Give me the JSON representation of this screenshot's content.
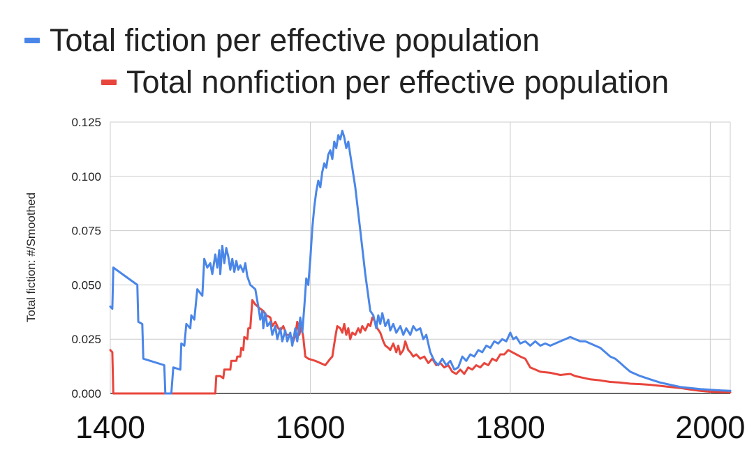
{
  "chart_data": {
    "type": "line",
    "title": "",
    "xlabel": "",
    "ylabel": "Total fiction: #/Smoothed",
    "xlim": [
      1400,
      2020
    ],
    "ylim": [
      0,
      0.125
    ],
    "x_ticks": [
      1400,
      1600,
      1800,
      2000
    ],
    "x_tick_labels": [
      "1400",
      "1600",
      "1800",
      "2000"
    ],
    "y_ticks": [
      0,
      0.025,
      0.05,
      0.075,
      0.1,
      0.125
    ],
    "y_tick_labels": [
      "0.000",
      "0.025",
      "0.050",
      "0.075",
      "0.100",
      "0.125"
    ],
    "grid": true,
    "legend_position": "top",
    "series": [
      {
        "name": "Total fiction per effective population",
        "color": "#4a86e8",
        "points": [
          [
            1400,
            0.04
          ],
          [
            1402,
            0.039
          ],
          [
            1403,
            0.058
          ],
          [
            1415,
            0.054
          ],
          [
            1427,
            0.05
          ],
          [
            1428,
            0.033
          ],
          [
            1432,
            0.032
          ],
          [
            1433,
            0.016
          ],
          [
            1454,
            0.013
          ],
          [
            1455,
            0.0
          ],
          [
            1461,
            0.0
          ],
          [
            1463,
            0.012
          ],
          [
            1470,
            0.011
          ],
          [
            1471,
            0.023
          ],
          [
            1474,
            0.022
          ],
          [
            1476,
            0.032
          ],
          [
            1480,
            0.03
          ],
          [
            1481,
            0.036
          ],
          [
            1484,
            0.034
          ],
          [
            1487,
            0.048
          ],
          [
            1492,
            0.045
          ],
          [
            1494,
            0.062
          ],
          [
            1497,
            0.058
          ],
          [
            1500,
            0.06
          ],
          [
            1502,
            0.055
          ],
          [
            1505,
            0.064
          ],
          [
            1507,
            0.058
          ],
          [
            1509,
            0.066
          ],
          [
            1510,
            0.055
          ],
          [
            1512,
            0.068
          ],
          [
            1514,
            0.06
          ],
          [
            1516,
            0.067
          ],
          [
            1518,
            0.063
          ],
          [
            1520,
            0.057
          ],
          [
            1522,
            0.062
          ],
          [
            1524,
            0.056
          ],
          [
            1526,
            0.061
          ],
          [
            1528,
            0.057
          ],
          [
            1530,
            0.059
          ],
          [
            1533,
            0.056
          ],
          [
            1535,
            0.06
          ],
          [
            1537,
            0.054
          ],
          [
            1540,
            0.05
          ],
          [
            1545,
            0.048
          ],
          [
            1548,
            0.04
          ],
          [
            1550,
            0.034
          ],
          [
            1552,
            0.038
          ],
          [
            1553,
            0.03
          ],
          [
            1555,
            0.037
          ],
          [
            1557,
            0.031
          ],
          [
            1560,
            0.033
          ],
          [
            1562,
            0.027
          ],
          [
            1565,
            0.031
          ],
          [
            1567,
            0.025
          ],
          [
            1570,
            0.03
          ],
          [
            1572,
            0.024
          ],
          [
            1575,
            0.029
          ],
          [
            1577,
            0.024
          ],
          [
            1580,
            0.028
          ],
          [
            1582,
            0.022
          ],
          [
            1585,
            0.03
          ],
          [
            1587,
            0.024
          ],
          [
            1590,
            0.035
          ],
          [
            1592,
            0.028
          ],
          [
            1594,
            0.04
          ],
          [
            1596,
            0.053
          ],
          [
            1598,
            0.05
          ],
          [
            1600,
            0.062
          ],
          [
            1602,
            0.076
          ],
          [
            1604,
            0.086
          ],
          [
            1606,
            0.093
          ],
          [
            1608,
            0.098
          ],
          [
            1610,
            0.095
          ],
          [
            1612,
            0.102
          ],
          [
            1614,
            0.106
          ],
          [
            1616,
            0.104
          ],
          [
            1618,
            0.11
          ],
          [
            1620,
            0.112
          ],
          [
            1622,
            0.108
          ],
          [
            1624,
            0.116
          ],
          [
            1626,
            0.113
          ],
          [
            1628,
            0.119
          ],
          [
            1630,
            0.117
          ],
          [
            1632,
            0.121
          ],
          [
            1634,
            0.118
          ],
          [
            1636,
            0.113
          ],
          [
            1638,
            0.116
          ],
          [
            1640,
            0.11
          ],
          [
            1645,
            0.095
          ],
          [
            1650,
            0.075
          ],
          [
            1655,
            0.055
          ],
          [
            1660,
            0.038
          ],
          [
            1663,
            0.036
          ],
          [
            1666,
            0.03
          ],
          [
            1668,
            0.036
          ],
          [
            1670,
            0.032
          ],
          [
            1672,
            0.037
          ],
          [
            1675,
            0.031
          ],
          [
            1678,
            0.034
          ],
          [
            1680,
            0.029
          ],
          [
            1683,
            0.032
          ],
          [
            1686,
            0.028
          ],
          [
            1690,
            0.031
          ],
          [
            1693,
            0.027
          ],
          [
            1696,
            0.03
          ],
          [
            1700,
            0.027
          ],
          [
            1703,
            0.031
          ],
          [
            1706,
            0.029
          ],
          [
            1710,
            0.03
          ],
          [
            1713,
            0.025
          ],
          [
            1716,
            0.027
          ],
          [
            1720,
            0.019
          ],
          [
            1724,
            0.015
          ],
          [
            1728,
            0.013
          ],
          [
            1732,
            0.016
          ],
          [
            1736,
            0.013
          ],
          [
            1740,
            0.015
          ],
          [
            1744,
            0.011
          ],
          [
            1748,
            0.012
          ],
          [
            1752,
            0.017
          ],
          [
            1756,
            0.015
          ],
          [
            1760,
            0.018
          ],
          [
            1764,
            0.017
          ],
          [
            1768,
            0.02
          ],
          [
            1772,
            0.019
          ],
          [
            1776,
            0.022
          ],
          [
            1780,
            0.021
          ],
          [
            1784,
            0.024
          ],
          [
            1788,
            0.023
          ],
          [
            1792,
            0.025
          ],
          [
            1796,
            0.024
          ],
          [
            1800,
            0.028
          ],
          [
            1803,
            0.025
          ],
          [
            1806,
            0.026
          ],
          [
            1810,
            0.023
          ],
          [
            1815,
            0.024
          ],
          [
            1820,
            0.022
          ],
          [
            1825,
            0.024
          ],
          [
            1830,
            0.022
          ],
          [
            1835,
            0.023
          ],
          [
            1840,
            0.022
          ],
          [
            1845,
            0.023
          ],
          [
            1850,
            0.024
          ],
          [
            1855,
            0.025
          ],
          [
            1860,
            0.026
          ],
          [
            1865,
            0.025
          ],
          [
            1870,
            0.024
          ],
          [
            1875,
            0.024
          ],
          [
            1880,
            0.023
          ],
          [
            1885,
            0.022
          ],
          [
            1890,
            0.021
          ],
          [
            1895,
            0.019
          ],
          [
            1900,
            0.017
          ],
          [
            1905,
            0.016
          ],
          [
            1910,
            0.014
          ],
          [
            1915,
            0.012
          ],
          [
            1920,
            0.01
          ],
          [
            1925,
            0.009
          ],
          [
            1930,
            0.008
          ],
          [
            1940,
            0.0065
          ],
          [
            1950,
            0.005
          ],
          [
            1960,
            0.004
          ],
          [
            1970,
            0.003
          ],
          [
            1980,
            0.0025
          ],
          [
            1990,
            0.002
          ],
          [
            2000,
            0.0017
          ],
          [
            2010,
            0.0014
          ],
          [
            2020,
            0.0012
          ]
        ]
      },
      {
        "name": "Total nonfiction per effective population",
        "color": "#e8453c",
        "points": [
          [
            1400,
            0.02
          ],
          [
            1402,
            0.019
          ],
          [
            1403,
            0.0
          ],
          [
            1505,
            0.0
          ],
          [
            1506,
            0.008
          ],
          [
            1510,
            0.008
          ],
          [
            1513,
            0.007
          ],
          [
            1514,
            0.011
          ],
          [
            1520,
            0.011
          ],
          [
            1521,
            0.015
          ],
          [
            1526,
            0.015
          ],
          [
            1527,
            0.017
          ],
          [
            1530,
            0.017
          ],
          [
            1531,
            0.021
          ],
          [
            1533,
            0.02
          ],
          [
            1534,
            0.026
          ],
          [
            1537,
            0.025
          ],
          [
            1538,
            0.03
          ],
          [
            1540,
            0.03
          ],
          [
            1542,
            0.043
          ],
          [
            1545,
            0.041
          ],
          [
            1550,
            0.039
          ],
          [
            1553,
            0.038
          ],
          [
            1556,
            0.036
          ],
          [
            1560,
            0.035
          ],
          [
            1562,
            0.031
          ],
          [
            1565,
            0.033
          ],
          [
            1568,
            0.03
          ],
          [
            1570,
            0.029
          ],
          [
            1573,
            0.031
          ],
          [
            1576,
            0.027
          ],
          [
            1580,
            0.027
          ],
          [
            1583,
            0.024
          ],
          [
            1585,
            0.027
          ],
          [
            1587,
            0.033
          ],
          [
            1589,
            0.027
          ],
          [
            1591,
            0.031
          ],
          [
            1593,
            0.026
          ],
          [
            1595,
            0.017
          ],
          [
            1598,
            0.016
          ],
          [
            1605,
            0.015
          ],
          [
            1615,
            0.013
          ],
          [
            1620,
            0.016
          ],
          [
            1622,
            0.017
          ],
          [
            1625,
            0.026
          ],
          [
            1627,
            0.031
          ],
          [
            1630,
            0.03
          ],
          [
            1632,
            0.028
          ],
          [
            1634,
            0.032
          ],
          [
            1636,
            0.027
          ],
          [
            1638,
            0.03
          ],
          [
            1640,
            0.025
          ],
          [
            1642,
            0.028
          ],
          [
            1645,
            0.027
          ],
          [
            1648,
            0.03
          ],
          [
            1650,
            0.028
          ],
          [
            1652,
            0.031
          ],
          [
            1655,
            0.029
          ],
          [
            1658,
            0.032
          ],
          [
            1660,
            0.031
          ],
          [
            1662,
            0.035
          ],
          [
            1665,
            0.033
          ],
          [
            1667,
            0.03
          ],
          [
            1670,
            0.028
          ],
          [
            1673,
            0.024
          ],
          [
            1675,
            0.022
          ],
          [
            1678,
            0.021
          ],
          [
            1680,
            0.02
          ],
          [
            1683,
            0.023
          ],
          [
            1686,
            0.019
          ],
          [
            1688,
            0.022
          ],
          [
            1690,
            0.018
          ],
          [
            1693,
            0.02
          ],
          [
            1695,
            0.024
          ],
          [
            1698,
            0.02
          ],
          [
            1700,
            0.019
          ],
          [
            1703,
            0.017
          ],
          [
            1706,
            0.018
          ],
          [
            1710,
            0.016
          ],
          [
            1714,
            0.017
          ],
          [
            1718,
            0.014
          ],
          [
            1722,
            0.016
          ],
          [
            1726,
            0.013
          ],
          [
            1730,
            0.014
          ],
          [
            1734,
            0.012
          ],
          [
            1738,
            0.013
          ],
          [
            1742,
            0.01
          ],
          [
            1746,
            0.009
          ],
          [
            1750,
            0.011
          ],
          [
            1754,
            0.009
          ],
          [
            1758,
            0.012
          ],
          [
            1762,
            0.011
          ],
          [
            1766,
            0.013
          ],
          [
            1770,
            0.012
          ],
          [
            1774,
            0.014
          ],
          [
            1778,
            0.013
          ],
          [
            1782,
            0.016
          ],
          [
            1786,
            0.015
          ],
          [
            1790,
            0.018
          ],
          [
            1794,
            0.018
          ],
          [
            1798,
            0.02
          ],
          [
            1802,
            0.019
          ],
          [
            1806,
            0.018
          ],
          [
            1810,
            0.017
          ],
          [
            1815,
            0.016
          ],
          [
            1820,
            0.012
          ],
          [
            1825,
            0.011
          ],
          [
            1830,
            0.01
          ],
          [
            1840,
            0.0095
          ],
          [
            1850,
            0.0085
          ],
          [
            1860,
            0.009
          ],
          [
            1865,
            0.008
          ],
          [
            1870,
            0.0075
          ],
          [
            1880,
            0.0065
          ],
          [
            1890,
            0.006
          ],
          [
            1900,
            0.0053
          ],
          [
            1910,
            0.005
          ],
          [
            1920,
            0.0045
          ],
          [
            1930,
            0.0043
          ],
          [
            1940,
            0.004
          ],
          [
            1950,
            0.0035
          ],
          [
            1960,
            0.003
          ],
          [
            1970,
            0.0025
          ],
          [
            1980,
            0.0018
          ],
          [
            1990,
            0.0012
          ],
          [
            2000,
            0.0008
          ],
          [
            2010,
            0.0006
          ],
          [
            2020,
            0.0005
          ]
        ]
      }
    ]
  }
}
